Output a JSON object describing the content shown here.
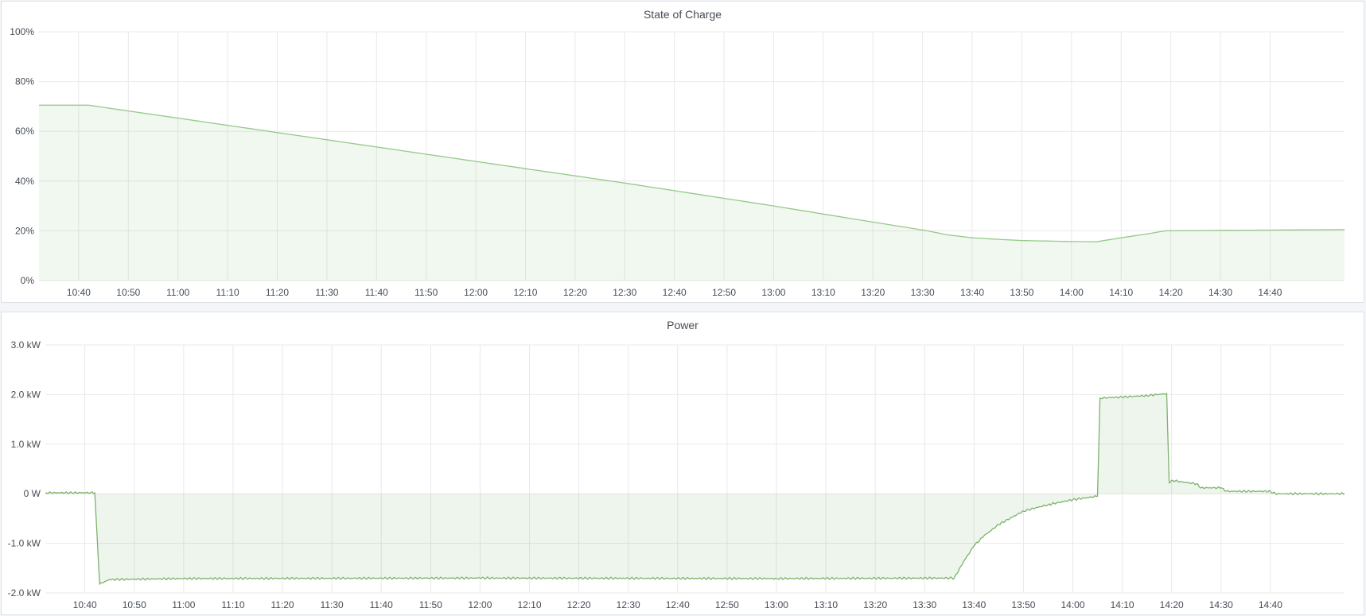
{
  "chart_data": [
    {
      "type": "area",
      "title": "State of Charge",
      "xlabel": "",
      "ylabel": "",
      "x_range": [
        "10:32",
        "14:55"
      ],
      "ylim": [
        0,
        100
      ],
      "y_ticks": [
        "0%",
        "20%",
        "40%",
        "60%",
        "80%",
        "100%"
      ],
      "y_tick_values": [
        0,
        20,
        40,
        60,
        80,
        100
      ],
      "x_ticks": [
        "10:40",
        "10:50",
        "11:00",
        "11:10",
        "11:20",
        "11:30",
        "11:40",
        "11:50",
        "12:00",
        "12:10",
        "12:20",
        "12:30",
        "12:40",
        "12:50",
        "13:00",
        "13:10",
        "13:20",
        "13:30",
        "13:40",
        "13:50",
        "14:00",
        "14:10",
        "14:20",
        "14:30",
        "14:40"
      ],
      "grid": true,
      "legend": "none",
      "color": "#96c98a",
      "series": [
        {
          "points": [
            [
              "10:32",
              70.5
            ],
            [
              "10:42",
              70.5
            ],
            [
              "11:00",
              65.3
            ],
            [
              "11:30",
              56.6
            ],
            [
              "12:00",
              47.9
            ],
            [
              "12:30",
              39.2
            ],
            [
              "13:00",
              30.0
            ],
            [
              "13:20",
              23.5
            ],
            [
              "13:31",
              20.0
            ],
            [
              "13:35",
              18.4
            ],
            [
              "13:40",
              17.2
            ],
            [
              "13:45",
              16.6
            ],
            [
              "13:50",
              16.1
            ],
            [
              "14:00",
              15.7
            ],
            [
              "14:05",
              15.6
            ],
            [
              "14:10",
              17.2
            ],
            [
              "14:15",
              18.7
            ],
            [
              "14:19",
              20.0
            ],
            [
              "14:30",
              20.2
            ],
            [
              "14:40",
              20.3
            ],
            [
              "14:55",
              20.5
            ]
          ]
        }
      ]
    },
    {
      "type": "area",
      "title": "Power",
      "xlabel": "",
      "ylabel": "",
      "x_range": [
        "10:32",
        "14:55"
      ],
      "ylim": [
        -2,
        3
      ],
      "y_ticks": [
        "-2.0 kW",
        "-1.0 kW",
        "0 W",
        "1.0 kW",
        "2.0 kW",
        "3.0 kW"
      ],
      "y_tick_values": [
        -2,
        -1,
        0,
        1,
        2,
        3
      ],
      "x_ticks": [
        "10:40",
        "10:50",
        "11:00",
        "11:10",
        "11:20",
        "11:30",
        "11:40",
        "11:50",
        "12:00",
        "12:10",
        "12:20",
        "12:30",
        "12:40",
        "12:50",
        "13:00",
        "13:10",
        "13:20",
        "13:30",
        "13:40",
        "13:50",
        "14:00",
        "14:10",
        "14:20",
        "14:30",
        "14:40"
      ],
      "grid": true,
      "legend": "none",
      "color": "#7eb26d",
      "series": [
        {
          "points": [
            [
              "10:32",
              0.02
            ],
            [
              "10:42",
              0.02
            ],
            [
              "10:43",
              -1.82
            ],
            [
              "10:45",
              -1.73
            ],
            [
              "11:00",
              -1.71
            ],
            [
              "12:00",
              -1.7
            ],
            [
              "13:00",
              -1.71
            ],
            [
              "13:36",
              -1.7
            ],
            [
              "13:38",
              -1.35
            ],
            [
              "13:40",
              -1.05
            ],
            [
              "13:42",
              -0.85
            ],
            [
              "13:45",
              -0.62
            ],
            [
              "13:50",
              -0.35
            ],
            [
              "13:55",
              -0.22
            ],
            [
              "14:00",
              -0.12
            ],
            [
              "14:05",
              -0.05
            ],
            [
              "14:05.5",
              1.93
            ],
            [
              "14:10",
              1.95
            ],
            [
              "14:15",
              1.98
            ],
            [
              "14:19",
              2.02
            ],
            [
              "14:19.5",
              0.22
            ],
            [
              "14:20",
              0.27
            ],
            [
              "14:25",
              0.2
            ],
            [
              "14:26",
              0.12
            ],
            [
              "14:30",
              0.12
            ],
            [
              "14:31",
              0.05
            ],
            [
              "14:40",
              0.05
            ],
            [
              "14:41",
              0.0
            ],
            [
              "14:55",
              0.0
            ]
          ]
        }
      ]
    }
  ]
}
